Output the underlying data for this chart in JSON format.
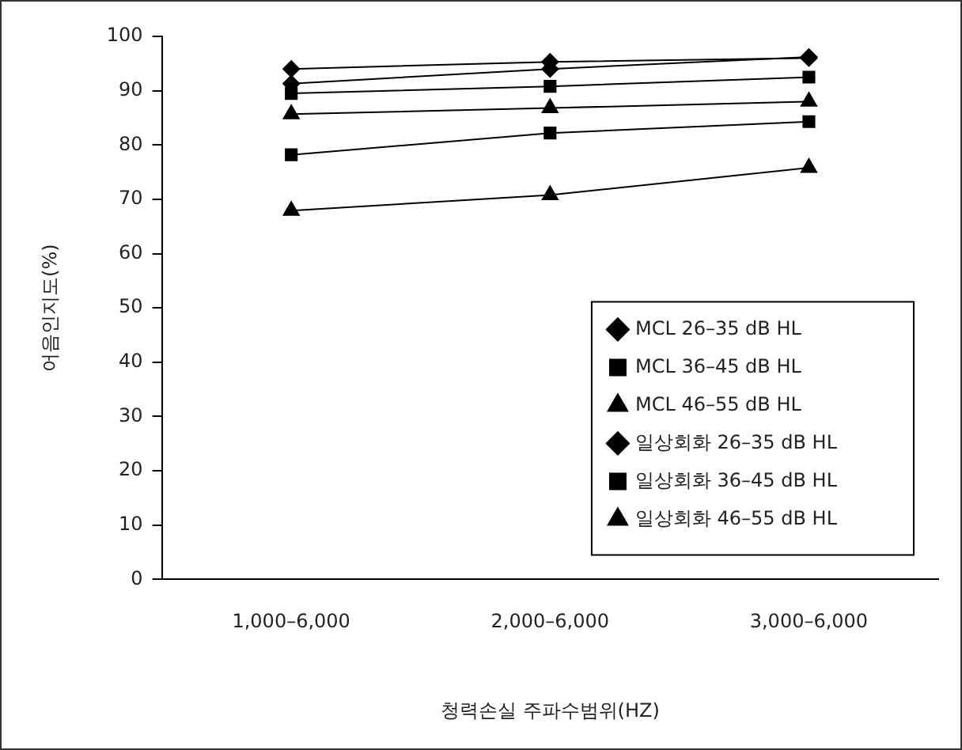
{
  "chart_data": {
    "type": "line",
    "xlabel": "청력손실 주파수범위(HZ)",
    "ylabel": "어음인지도(%)",
    "categories": [
      "1,000–6,000",
      "2,000–6,000",
      "3,000–6,000"
    ],
    "ylim": [
      0,
      100
    ],
    "yticks": [
      0,
      10,
      20,
      30,
      40,
      50,
      60,
      70,
      80,
      90,
      100
    ],
    "grid": false,
    "legend": "bottom right",
    "series": [
      {
        "name": "MCL 26–35 dB HL",
        "color": "#000000",
        "marker": "diamond",
        "values": [
          94,
          95.3,
          96
        ]
      },
      {
        "name": "MCL 36–45 dB HL",
        "color": "#000000",
        "marker": "square",
        "values": [
          89.5,
          90.8,
          92.5
        ]
      },
      {
        "name": "MCL 46–55 dB HL",
        "color": "#000000",
        "marker": "triangle",
        "values": [
          85.7,
          86.8,
          88
        ]
      },
      {
        "name": "일상회화 26–35 dB HL",
        "color": "#000000",
        "marker": "diamond",
        "values": [
          91.3,
          94,
          96.2
        ]
      },
      {
        "name": "일상회화 36–45 dB HL",
        "color": "#000000",
        "marker": "square",
        "values": [
          78.2,
          82.2,
          84.3
        ]
      },
      {
        "name": "일상회화 46–55 dB HL",
        "color": "#000000",
        "marker": "triangle",
        "values": [
          67.9,
          70.8,
          75.8
        ]
      }
    ]
  }
}
